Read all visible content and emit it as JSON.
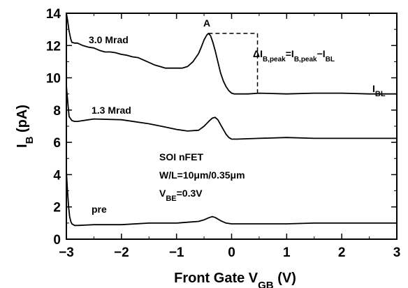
{
  "chart_data": {
    "type": "line",
    "xlabel": {
      "main": "Front Gate V",
      "sub": "GB",
      "unit": " (V)"
    },
    "ylabel": {
      "main": "I",
      "sub": "B",
      "unit": " (pA)"
    },
    "xlim": [
      -3,
      3
    ],
    "ylim": [
      0,
      14
    ],
    "x_ticks": [
      -3,
      -2,
      -1,
      0,
      1,
      2,
      3
    ],
    "x_tick_labels": [
      "−3",
      "−2",
      "−1",
      "0",
      "1",
      "2",
      "3"
    ],
    "y_ticks": [
      0,
      2,
      4,
      6,
      8,
      10,
      12,
      14
    ],
    "y_tick_labels": [
      "0",
      "2",
      "4",
      "6",
      "8",
      "10",
      "12",
      "14"
    ],
    "grid": false,
    "series": [
      {
        "name": "3.0 Mrad",
        "x": [
          -3.0,
          -2.98,
          -2.95,
          -2.92,
          -2.9,
          -2.85,
          -2.8,
          -2.7,
          -2.6,
          -2.5,
          -2.4,
          -2.3,
          -2.2,
          -2.1,
          -2.0,
          -1.9,
          -1.8,
          -1.7,
          -1.6,
          -1.5,
          -1.4,
          -1.3,
          -1.2,
          -1.1,
          -1.0,
          -0.9,
          -0.8,
          -0.7,
          -0.6,
          -0.55,
          -0.5,
          -0.45,
          -0.42,
          -0.38,
          -0.34,
          -0.3,
          -0.25,
          -0.2,
          -0.15,
          -0.1,
          -0.05,
          0.0,
          0.05,
          0.1,
          0.2,
          0.3,
          0.5,
          1.0,
          1.5,
          2.0,
          2.5,
          3.0
        ],
        "y": [
          14.0,
          13.6,
          12.9,
          12.4,
          12.2,
          12.15,
          12.15,
          12.0,
          11.9,
          11.85,
          11.7,
          11.6,
          11.6,
          11.55,
          11.45,
          11.4,
          11.3,
          11.25,
          11.1,
          10.95,
          10.8,
          10.7,
          10.6,
          10.6,
          10.6,
          10.6,
          10.7,
          11.0,
          11.5,
          11.9,
          12.35,
          12.65,
          12.75,
          12.6,
          12.2,
          11.7,
          11.0,
          10.3,
          9.8,
          9.45,
          9.2,
          9.05,
          9.0,
          9.0,
          9.0,
          9.0,
          9.05,
          9.0,
          9.05,
          9.05,
          9.0,
          9.0
        ]
      },
      {
        "name": "1.3 Mrad",
        "x": [
          -3.0,
          -2.97,
          -2.95,
          -2.9,
          -2.85,
          -2.8,
          -2.5,
          -2.0,
          -1.5,
          -1.2,
          -1.0,
          -0.8,
          -0.6,
          -0.5,
          -0.4,
          -0.35,
          -0.3,
          -0.25,
          -0.2,
          -0.1,
          -0.05,
          0.0,
          0.1,
          0.5,
          1.0,
          1.5,
          2.0,
          2.5,
          3.0
        ],
        "y": [
          9.5,
          8.3,
          7.6,
          7.35,
          7.3,
          7.3,
          7.45,
          7.4,
          7.15,
          6.95,
          6.8,
          6.7,
          6.75,
          7.0,
          7.35,
          7.5,
          7.55,
          7.4,
          7.1,
          6.5,
          6.3,
          6.2,
          6.2,
          6.25,
          6.3,
          6.25,
          6.25,
          6.25,
          6.25
        ]
      },
      {
        "name": "pre",
        "x": [
          -3.0,
          -2.98,
          -2.96,
          -2.94,
          -2.92,
          -2.9,
          -2.85,
          -2.8,
          -2.5,
          -2.0,
          -1.5,
          -1.0,
          -0.8,
          -0.6,
          -0.5,
          -0.4,
          -0.35,
          -0.3,
          -0.2,
          -0.1,
          0.0,
          0.5,
          1.0,
          1.5,
          2.0,
          2.5,
          3.0
        ],
        "y": [
          4.2,
          3.0,
          2.0,
          1.4,
          1.1,
          0.95,
          0.85,
          0.85,
          0.9,
          0.9,
          1.0,
          1.0,
          1.05,
          1.1,
          1.2,
          1.35,
          1.4,
          1.35,
          1.15,
          1.0,
          0.95,
          0.95,
          0.95,
          1.0,
          1.0,
          1.0,
          1.0
        ]
      }
    ],
    "annotations": {
      "label_30": "3.0 Mrad",
      "label_13": "1.3 Mrad",
      "label_pre": "pre",
      "peak_label": "A",
      "peak_x": -0.42,
      "peak_y": 12.75,
      "dash_end_x": 0.47,
      "baseline_y": 9.0,
      "delta_formula": {
        "p1": "ΔI",
        "s1": "B,peak",
        "p2": "=I",
        "s2": "B,peak",
        "p3": "−I",
        "s3": "BL"
      },
      "ibl_label": {
        "main": "I",
        "sub": "BL"
      },
      "device_lines": [
        {
          "main": "SOI nFET",
          "sub": "",
          "tail": ""
        },
        {
          "main": "W/L=10μm/0.35μm",
          "sub": "",
          "tail": ""
        },
        {
          "main": "V",
          "sub": "BE",
          "tail": "=0.3V"
        }
      ]
    }
  }
}
